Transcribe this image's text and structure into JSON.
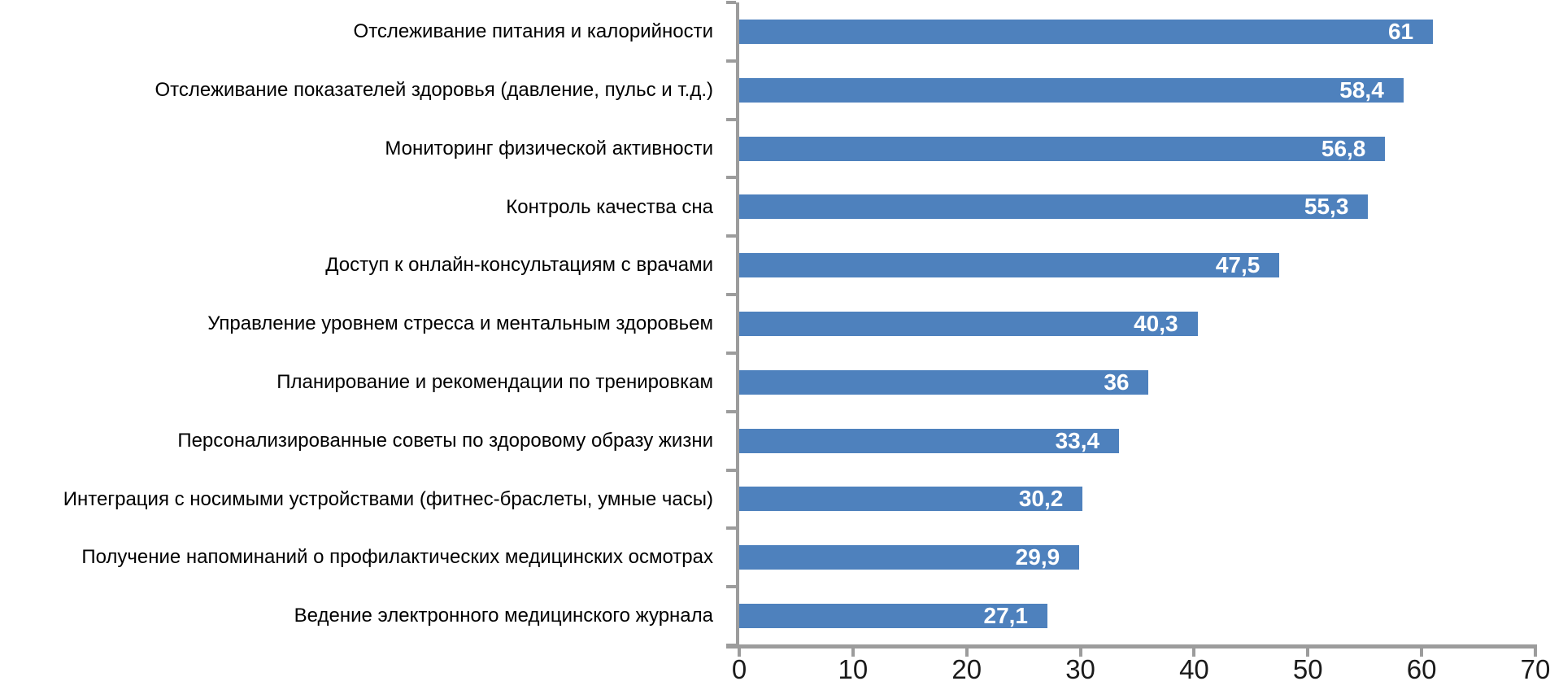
{
  "chart_data": {
    "type": "bar",
    "orientation": "horizontal",
    "title": "",
    "xlabel": "",
    "ylabel": "",
    "categories": [
      "Отслеживание питания и калорийности",
      "Отслеживание показателей здоровья (давление, пульс и т.д.)",
      "Мониторинг физической активности",
      "Контроль качества сна",
      "Доступ к онлайн-консультациям с врачами",
      "Управление уровнем стресса и ментальным здоровьем",
      "Планирование и рекомендации по тренировкам",
      "Персонализированные советы по здоровому образу жизни",
      "Интеграция с носимыми устройствами (фитнес-браслеты, умные часы)",
      "Получение напоминаний о профилактических медицинских осмотрах",
      "Ведение электронного медицинского журнала"
    ],
    "values": [
      61,
      58.4,
      56.8,
      55.3,
      47.5,
      40.3,
      36,
      33.4,
      30.2,
      29.9,
      27.1
    ],
    "value_labels": [
      "61",
      "58,4",
      "56,8",
      "55,3",
      "47,5",
      "40,3",
      "36",
      "33,4",
      "30,2",
      "29,9",
      "27,1"
    ],
    "x_ticks": [
      "0",
      "10",
      "20",
      "30",
      "40",
      "50",
      "60",
      "70"
    ],
    "xlim": [
      0,
      70
    ],
    "grid": false,
    "legend": false,
    "bar_color": "#4e81bd",
    "axis_color": "#9c9c9c",
    "category_label_color": "#000000",
    "value_label_color": "#ffffff",
    "tick_label_color": "#1a1a1a"
  }
}
